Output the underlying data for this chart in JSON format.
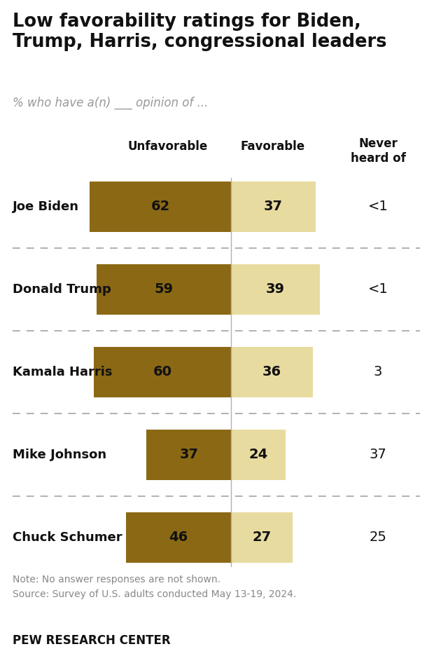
{
  "title": "Low favorability ratings for Biden,\nTrump, Harris, congressional leaders",
  "subtitle": "% who have a(n) ___ opinion of ...",
  "categories": [
    "Joe Biden",
    "Donald Trump",
    "Kamala Harris",
    "Mike Johnson",
    "Chuck Schumer"
  ],
  "unfavorable": [
    62,
    59,
    60,
    37,
    46
  ],
  "favorable": [
    37,
    39,
    36,
    24,
    27
  ],
  "never_heard_of": [
    "<1",
    "<1",
    "3",
    "37",
    "25"
  ],
  "unfavorable_color": "#8B6914",
  "favorable_color": "#E8DBA0",
  "note": "Note: No answer responses are not shown.\nSource: Survey of U.S. adults conducted May 13-19, 2024.",
  "footer": "PEW RESEARCH CENTER",
  "background_color": "#ffffff",
  "center_line_color": "#b0b0b0",
  "dashed_line_color": "#aaaaaa"
}
